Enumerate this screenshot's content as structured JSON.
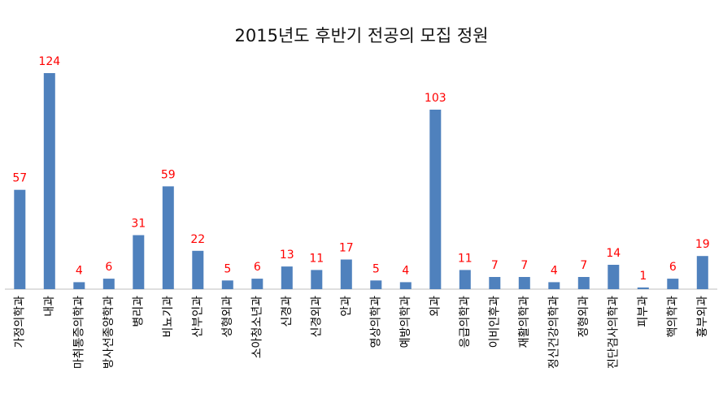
{
  "chart_data": {
    "type": "bar",
    "title": "2015년도 후반기 전공의 모집 정원",
    "categories": [
      "가정의학과",
      "내과",
      "마취통증의학과",
      "방사선종양학과",
      "병리과",
      "비뇨기과",
      "산부인과",
      "성형외과",
      "소아청소년과",
      "신경과",
      "신경외과",
      "안과",
      "영상의학과",
      "예방의학과",
      "외과",
      "응급의학과",
      "이비인후과",
      "재활의학과",
      "정신건강의학과",
      "정형외과",
      "진단검사의학과",
      "피부과",
      "핵의학과",
      "흉부외과"
    ],
    "values": [
      57,
      124,
      4,
      6,
      31,
      59,
      22,
      5,
      6,
      13,
      11,
      17,
      5,
      4,
      103,
      11,
      7,
      7,
      4,
      7,
      14,
      1,
      6,
      19
    ],
    "xlabel": "",
    "ylabel": "",
    "ylim": [
      0,
      124
    ],
    "grid": false,
    "legend": "none",
    "colors": {
      "bar": "#4F81BD",
      "label": "#FF0000",
      "axis": "#BFBFBF"
    }
  }
}
